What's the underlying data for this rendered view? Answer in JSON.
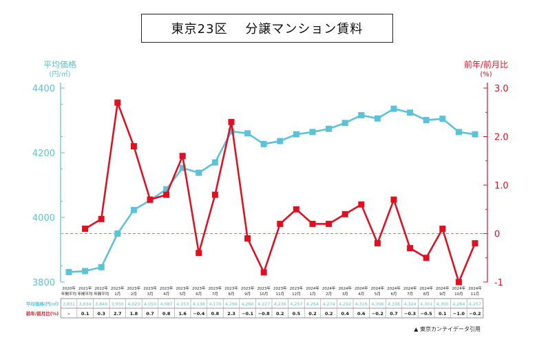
{
  "title": "東京23区　 分譲マンション賃料",
  "source_note": "▲ 東京カンテイデータ引用",
  "colors": {
    "rent": "#5bc2d8",
    "yoy": "#e01020",
    "zero_line": "#e87070"
  },
  "chart_data": {
    "type": "line",
    "title": "東京23区　 分譲マンション賃料",
    "left_axis": {
      "title_line1": "平均価格",
      "title_line2": "(円/㎡)",
      "ylim": [
        3800,
        4400
      ],
      "ticks": [
        3800,
        4000,
        4200,
        4400
      ]
    },
    "right_axis": {
      "title_line1": "前年/前月比",
      "title_line2": "(%)",
      "ylim": [
        -1,
        3
      ],
      "ticks": [
        "-1",
        "0",
        "1.0",
        "2.0",
        "3.0"
      ]
    },
    "categories_top": [
      "2020年",
      "2021年",
      "2022年",
      "2023年",
      "2023年",
      "2023年",
      "2023年",
      "2023年",
      "2023年",
      "2023年",
      "2023年",
      "2023年",
      "2023年",
      "2023年",
      "2023年",
      "2024年",
      "2024年",
      "2024年",
      "2024年",
      "2024年",
      "2024年",
      "2024年",
      "2024年",
      "2024年",
      "2024年",
      "2024年"
    ],
    "categories_bottom": [
      "年間平均",
      "年間平均",
      "年間平均",
      "1月",
      "2月",
      "3月",
      "4月",
      "5月",
      "6月",
      "7月",
      "8月",
      "9月",
      "10月",
      "11月",
      "12月",
      "1月",
      "2月",
      "3月",
      "4月",
      "5月",
      "6月",
      "7月",
      "8月",
      "9月",
      "10月",
      "11月"
    ],
    "series": [
      {
        "name": "平均価格",
        "table_label": "平均価格(円/㎡)",
        "axis": "left",
        "values": [
          3831,
          3834,
          3846,
          3950,
          4023,
          4053,
          4087,
          4153,
          4138,
          4170,
          4266,
          4260,
          4227,
          4236,
          4257,
          4264,
          4274,
          4292,
          4316,
          4306,
          4336,
          4324,
          4301,
          4305,
          4264,
          4257
        ],
        "labels": [
          "3,831",
          "3,834",
          "3,846",
          "3,950",
          "4,023",
          "4,053",
          "4,087",
          "4,153",
          "4,138",
          "4,170",
          "4,266",
          "4,260",
          "4,227",
          "4,236",
          "4,257",
          "4,264",
          "4,274",
          "4,292",
          "4,316",
          "4,306",
          "4,336",
          "4,324",
          "4,301",
          "4,305",
          "4,264",
          "4,257"
        ]
      },
      {
        "name": "前年/前月比",
        "table_label": "前年/前月比(%)",
        "axis": "right",
        "values": [
          null,
          0.1,
          0.3,
          2.7,
          1.8,
          0.7,
          0.8,
          1.6,
          -0.4,
          0.8,
          2.3,
          -0.1,
          -0.8,
          0.2,
          0.5,
          0.2,
          0.2,
          0.4,
          0.6,
          -0.2,
          0.7,
          -0.3,
          -0.5,
          0.1,
          -1.0,
          -0.2
        ],
        "labels": [
          "–",
          "0.1",
          "0.3",
          "2.7",
          "1.8",
          "0.7",
          "0.8",
          "1.6",
          "−0.4",
          "0.8",
          "2.3",
          "−0.1",
          "−0.8",
          "0.2",
          "0.5",
          "0.2",
          "0.2",
          "0.4",
          "0.6",
          "−0.2",
          "0.7",
          "−0.3",
          "−0.5",
          "0.1",
          "−1.0",
          "−0.2"
        ]
      }
    ]
  }
}
